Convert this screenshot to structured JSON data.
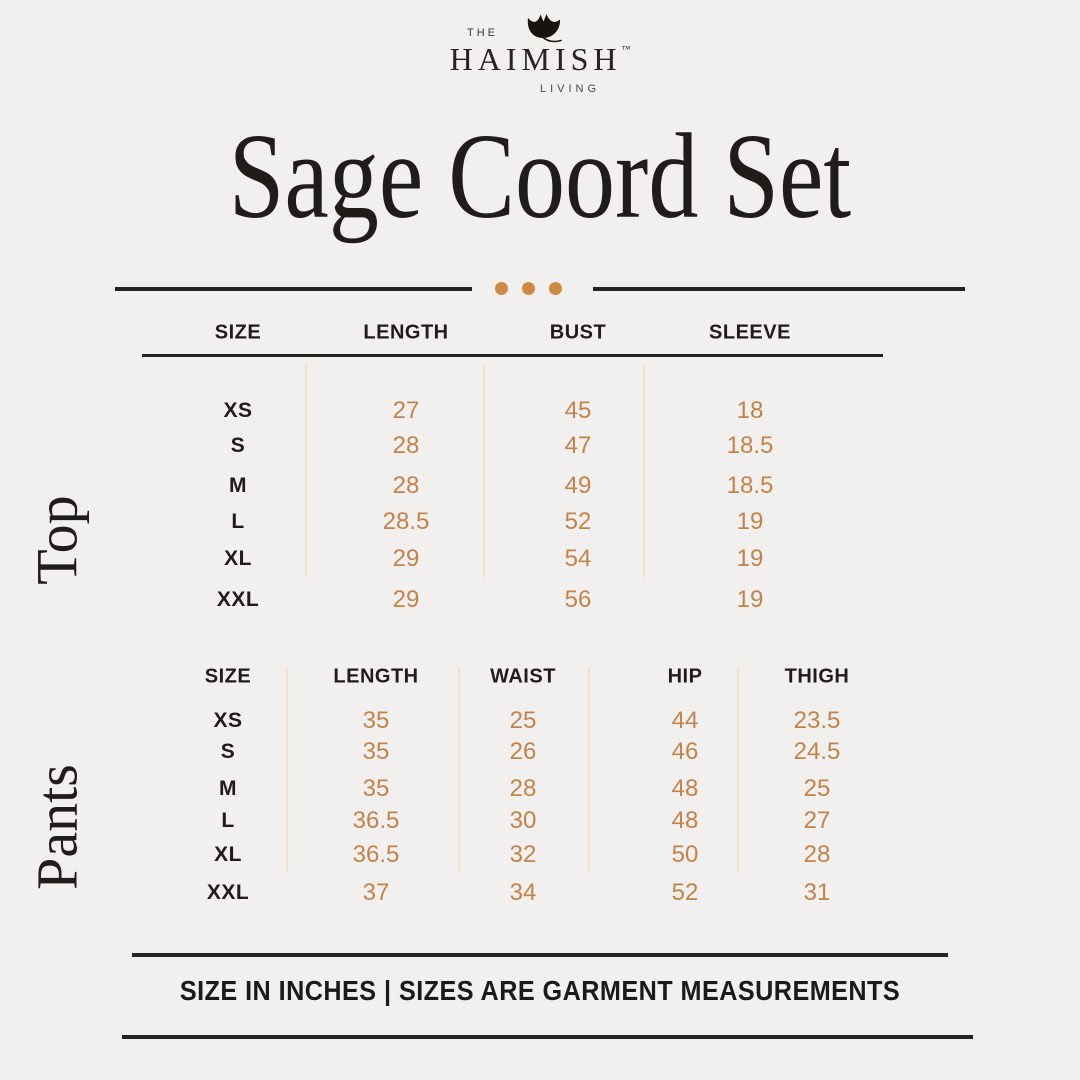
{
  "brand": {
    "the": "THE",
    "name": "HAIMISH",
    "tm": "™",
    "living": "LIVING",
    "leaf_icon": "ginkgo-leaf-icon"
  },
  "title": "Sage Coord Set",
  "colors": {
    "background": "#F2F0EE",
    "text_dark": "#1F1C1A",
    "accent_values": "#C2834A",
    "accent_dots": "#CE8A43",
    "light_column_divider": "#F5E2C6"
  },
  "top_table": {
    "section_label": "Top",
    "columns": [
      "SIZE",
      "LENGTH",
      "BUST",
      "SLEEVE"
    ],
    "rows": [
      {
        "size": "XS",
        "values": [
          "27",
          "45",
          "18"
        ]
      },
      {
        "size": "S",
        "values": [
          "28",
          "47",
          "18.5"
        ]
      },
      {
        "size": "M",
        "values": [
          "28",
          "49",
          "18.5"
        ]
      },
      {
        "size": "L",
        "values": [
          "28.5",
          "52",
          "19"
        ]
      },
      {
        "size": "XL",
        "values": [
          "29",
          "54",
          "19"
        ]
      },
      {
        "size": "XXL",
        "values": [
          "29",
          "56",
          "19"
        ]
      }
    ]
  },
  "pants_table": {
    "section_label": "Pants",
    "columns": [
      "SIZE",
      "LENGTH",
      "WAIST",
      "HIP",
      "THIGH"
    ],
    "rows": [
      {
        "size": "XS",
        "values": [
          "35",
          "25",
          "44",
          "23.5"
        ]
      },
      {
        "size": "S",
        "values": [
          "35",
          "26",
          "46",
          "24.5"
        ]
      },
      {
        "size": "M",
        "values": [
          "35",
          "28",
          "48",
          "25"
        ]
      },
      {
        "size": "L",
        "values": [
          "36.5",
          "30",
          "48",
          "27"
        ]
      },
      {
        "size": "XL",
        "values": [
          "36.5",
          "32",
          "50",
          "28"
        ]
      },
      {
        "size": "XXL",
        "values": [
          "37",
          "34",
          "52",
          "31"
        ]
      }
    ]
  },
  "footer": {
    "note": "SIZE IN INCHES | SIZES ARE GARMENT MEASUREMENTS"
  }
}
